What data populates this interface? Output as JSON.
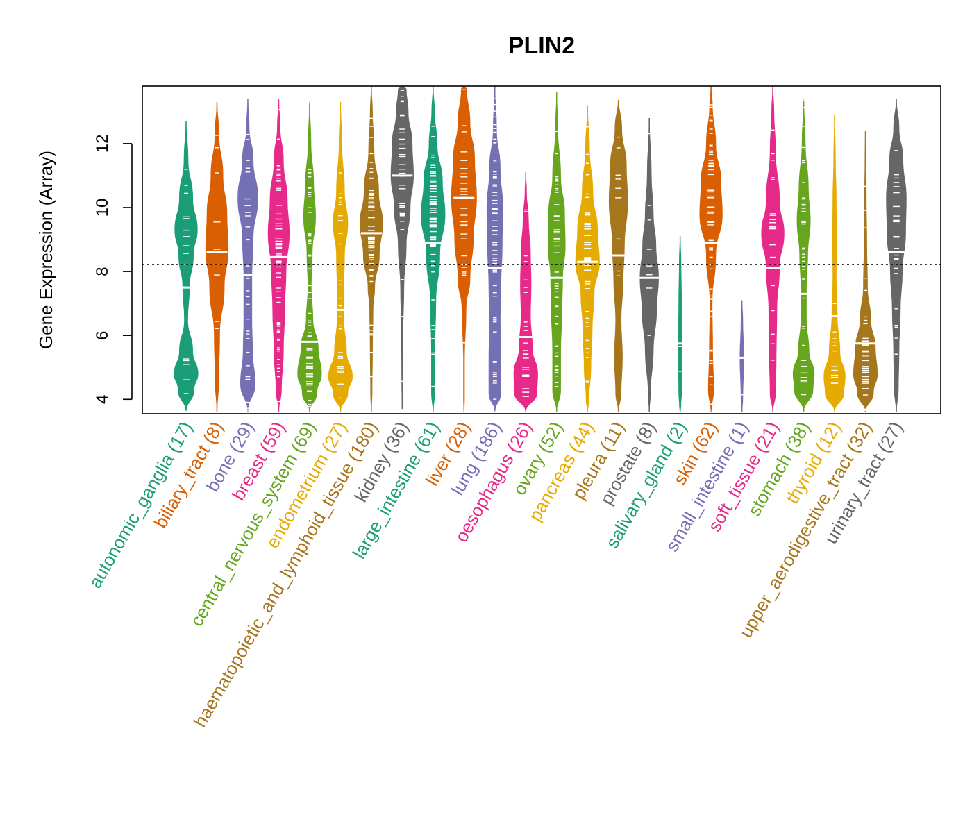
{
  "chart_data": {
    "type": "violin",
    "title": "PLIN2",
    "ylabel": "Gene Expression (Array)",
    "xlabel": "",
    "ylim": [
      3.55,
      13.8
    ],
    "yticks": [
      "4",
      "6",
      "8",
      "10",
      "12"
    ],
    "yticks_values": [
      4,
      6,
      8,
      10,
      12
    ],
    "reference_line": 8.22,
    "categories": [
      {
        "name": "autonomic_ganglia",
        "n": "17",
        "label": "autonomic_ganglia (17)",
        "color": "#1b9e77",
        "median": 7.5,
        "min": 3.6,
        "max": 12.7,
        "shape": [
          [
            4.3,
            0.6
          ],
          [
            4.8,
            0.9
          ],
          [
            5.5,
            0.5
          ],
          [
            6.5,
            0.12
          ],
          [
            7.5,
            0.25
          ],
          [
            8.5,
            0.55
          ],
          [
            9.3,
            0.85
          ],
          [
            10.3,
            0.5
          ],
          [
            11.5,
            0.15
          ]
        ]
      },
      {
        "name": "biliary_tract",
        "n": "8",
        "label": "biliary_tract (8)",
        "color": "#d95f02",
        "median": 8.6,
        "min": 3.6,
        "max": 13.3,
        "shape": [
          [
            4.5,
            0.12
          ],
          [
            6,
            0.2
          ],
          [
            7.5,
            0.55
          ],
          [
            8.7,
            0.85
          ],
          [
            9.8,
            0.75
          ],
          [
            11,
            0.45
          ],
          [
            12.3,
            0.15
          ]
        ]
      },
      {
        "name": "bone",
        "n": "29",
        "label": "bone (29)",
        "color": "#7570b3",
        "median": 7.9,
        "min": 3.6,
        "max": 13.4,
        "shape": [
          [
            4.5,
            0.55
          ],
          [
            5.5,
            0.35
          ],
          [
            6.5,
            0.3
          ],
          [
            7.8,
            0.3
          ],
          [
            9,
            0.4
          ],
          [
            10.3,
            0.75
          ],
          [
            11.5,
            0.4
          ],
          [
            12.5,
            0.1
          ]
        ]
      },
      {
        "name": "breast",
        "n": "59",
        "label": "breast (59)",
        "color": "#e7298a",
        "median": 8.45,
        "min": 3.6,
        "max": 13.4,
        "shape": [
          [
            4.3,
            0.2
          ],
          [
            5.5,
            0.35
          ],
          [
            6.8,
            0.45
          ],
          [
            8,
            0.55
          ],
          [
            9.2,
            0.8
          ],
          [
            10.2,
            0.65
          ],
          [
            11.5,
            0.35
          ],
          [
            12.5,
            0.1
          ]
        ]
      },
      {
        "name": "central_nervous_system",
        "n": "69",
        "label": "central_nervous_system (69)",
        "color": "#66a61e",
        "median": 5.8,
        "min": 3.6,
        "max": 13.3,
        "shape": [
          [
            4.2,
            0.55
          ],
          [
            4.8,
            0.9
          ],
          [
            5.6,
            0.65
          ],
          [
            6.5,
            0.25
          ],
          [
            7.5,
            0.12
          ],
          [
            8.6,
            0.2
          ],
          [
            9.7,
            0.45
          ],
          [
            10.8,
            0.3
          ],
          [
            12,
            0.1
          ]
        ]
      },
      {
        "name": "endometrium",
        "n": "27",
        "label": "endometrium (27)",
        "color": "#e6ab02",
        "median": 6.8,
        "min": 3.6,
        "max": 13.3,
        "shape": [
          [
            4.2,
            0.55
          ],
          [
            4.7,
            0.9
          ],
          [
            5.5,
            0.45
          ],
          [
            6.5,
            0.25
          ],
          [
            7.5,
            0.25
          ],
          [
            8.5,
            0.3
          ],
          [
            9.5,
            0.55
          ],
          [
            10.5,
            0.3
          ],
          [
            12,
            0.1
          ]
        ]
      },
      {
        "name": "haematopoietic_and_lymphoid_tissue",
        "n": "180",
        "label": "haematopoietic_and_lymphoid_tissue (180)",
        "color": "#a6761d",
        "median": 9.2,
        "min": 3.6,
        "max": 13.8,
        "shape": [
          [
            4.2,
            0.05
          ],
          [
            5.5,
            0.08
          ],
          [
            6.8,
            0.12
          ],
          [
            7.5,
            0.25
          ],
          [
            8.5,
            0.6
          ],
          [
            9.5,
            0.85
          ],
          [
            10.5,
            0.55
          ],
          [
            11.8,
            0.2
          ],
          [
            13,
            0.08
          ]
        ]
      },
      {
        "name": "kidney",
        "n": "36",
        "label": "kidney (36)",
        "color": "#666666",
        "median": 11.0,
        "min": 3.7,
        "max": 13.8,
        "shape": [
          [
            4.5,
            0.03
          ],
          [
            6,
            0.05
          ],
          [
            7.5,
            0.12
          ],
          [
            8.8,
            0.3
          ],
          [
            10,
            0.6
          ],
          [
            11,
            0.85
          ],
          [
            12,
            0.75
          ],
          [
            13,
            0.45
          ],
          [
            13.7,
            0.3
          ]
        ]
      },
      {
        "name": "large_intestine",
        "n": "61",
        "label": "large_intestine (61)",
        "color": "#1b9e77",
        "median": 8.9,
        "min": 3.6,
        "max": 13.8,
        "shape": [
          [
            4.2,
            0.12
          ],
          [
            5.5,
            0.12
          ],
          [
            7,
            0.2
          ],
          [
            8.5,
            0.5
          ],
          [
            9.8,
            0.9
          ],
          [
            10.8,
            0.7
          ],
          [
            12,
            0.3
          ],
          [
            13,
            0.1
          ]
        ]
      },
      {
        "name": "liver",
        "n": "28",
        "label": "liver (28)",
        "color": "#d95f02",
        "median": 10.3,
        "min": 3.6,
        "max": 13.8,
        "shape": [
          [
            4,
            0.03
          ],
          [
            5.2,
            0.03
          ],
          [
            6.8,
            0.15
          ],
          [
            7.8,
            0.45
          ],
          [
            9,
            0.7
          ],
          [
            10.3,
            0.95
          ],
          [
            11.5,
            0.8
          ],
          [
            12.7,
            0.45
          ],
          [
            13.7,
            0.2
          ]
        ]
      },
      {
        "name": "lung",
        "n": "186",
        "label": "lung (186)",
        "color": "#7570b3",
        "median": 8.1,
        "min": 3.6,
        "max": 13.8,
        "shape": [
          [
            4.2,
            0.45
          ],
          [
            5.2,
            0.45
          ],
          [
            6.5,
            0.4
          ],
          [
            7.5,
            0.45
          ],
          [
            8.8,
            0.55
          ],
          [
            10,
            0.6
          ],
          [
            11.2,
            0.4
          ],
          [
            12.5,
            0.12
          ]
        ]
      },
      {
        "name": "oesophagus",
        "n": "26",
        "label": "oesophagus (26)",
        "color": "#e7298a",
        "median": 5.95,
        "min": 3.6,
        "max": 11.1,
        "shape": [
          [
            4.2,
            0.85
          ],
          [
            4.8,
            0.9
          ],
          [
            5.6,
            0.5
          ],
          [
            6.6,
            0.35
          ],
          [
            7.6,
            0.4
          ],
          [
            8.6,
            0.35
          ],
          [
            9.6,
            0.2
          ],
          [
            10.5,
            0.05
          ]
        ]
      },
      {
        "name": "ovary",
        "n": "52",
        "label": "ovary (52)",
        "color": "#66a61e",
        "median": 7.8,
        "min": 3.6,
        "max": 13.6,
        "shape": [
          [
            4.3,
            0.3
          ],
          [
            5.5,
            0.3
          ],
          [
            6.8,
            0.4
          ],
          [
            7.8,
            0.45
          ],
          [
            8.8,
            0.65
          ],
          [
            9.8,
            0.6
          ],
          [
            11,
            0.3
          ],
          [
            12.5,
            0.08
          ]
        ]
      },
      {
        "name": "pancreas",
        "n": "44",
        "label": "pancreas (44)",
        "color": "#e6ab02",
        "median": 8.3,
        "min": 3.6,
        "max": 13.2,
        "shape": [
          [
            4,
            0.1
          ],
          [
            5,
            0.25
          ],
          [
            6.2,
            0.35
          ],
          [
            7.3,
            0.5
          ],
          [
            8.3,
            0.9
          ],
          [
            9.3,
            0.75
          ],
          [
            10.5,
            0.4
          ],
          [
            11.8,
            0.15
          ]
        ]
      },
      {
        "name": "pleura",
        "n": "11",
        "label": "pleura (11)",
        "color": "#a6761d",
        "median": 8.5,
        "min": 3.6,
        "max": 13.4,
        "shape": [
          [
            4.2,
            0.2
          ],
          [
            5.3,
            0.3
          ],
          [
            6.5,
            0.2
          ],
          [
            7.7,
            0.35
          ],
          [
            8.8,
            0.45
          ],
          [
            10.2,
            0.7
          ],
          [
            11.3,
            0.6
          ],
          [
            12.5,
            0.25
          ]
        ]
      },
      {
        "name": "prostate",
        "n": "8",
        "label": "prostate (8)",
        "color": "#666666",
        "median": 7.8,
        "min": 3.6,
        "max": 12.8,
        "shape": [
          [
            4.2,
            0.08
          ],
          [
            5.5,
            0.3
          ],
          [
            6.8,
            0.55
          ],
          [
            7.8,
            0.7
          ],
          [
            8.8,
            0.5
          ],
          [
            9.8,
            0.3
          ],
          [
            11,
            0.15
          ]
        ]
      },
      {
        "name": "salivary_gland",
        "n": "2",
        "label": "salivary_gland (2)",
        "color": "#1b9e77",
        "median": 5.75,
        "min": 3.6,
        "max": 9.1,
        "shape": [
          [
            3.8,
            0.05
          ],
          [
            4.2,
            0.1
          ],
          [
            5.5,
            0.15
          ],
          [
            7,
            0.1
          ],
          [
            8.3,
            0.06
          ]
        ]
      },
      {
        "name": "skin",
        "n": "62",
        "label": "skin (62)",
        "color": "#d95f02",
        "median": 8.9,
        "min": 3.6,
        "max": 13.8,
        "shape": [
          [
            4.3,
            0.2
          ],
          [
            5.5,
            0.12
          ],
          [
            7,
            0.08
          ],
          [
            8.5,
            0.35
          ],
          [
            9.8,
            0.85
          ],
          [
            10.8,
            0.75
          ],
          [
            12,
            0.35
          ],
          [
            13.2,
            0.1
          ]
        ]
      },
      {
        "name": "small_intestine",
        "n": "1",
        "label": "small_intestine (1)",
        "color": "#7570b3",
        "median": 5.3,
        "min": 3.6,
        "max": 7.1,
        "shape": [
          [
            4,
            0.06
          ],
          [
            5.3,
            0.14
          ],
          [
            6.5,
            0.06
          ]
        ]
      },
      {
        "name": "soft_tissue",
        "n": "21",
        "label": "soft_tissue (21)",
        "color": "#e7298a",
        "median": 8.1,
        "min": 3.6,
        "max": 13.8,
        "shape": [
          [
            4.2,
            0.2
          ],
          [
            5.3,
            0.25
          ],
          [
            6.8,
            0.3
          ],
          [
            8.1,
            0.5
          ],
          [
            9.2,
            0.85
          ],
          [
            10.2,
            0.5
          ],
          [
            11.8,
            0.2
          ],
          [
            13,
            0.08
          ]
        ]
      },
      {
        "name": "stomach",
        "n": "38",
        "label": "stomach (38)",
        "color": "#66a61e",
        "median": 7.3,
        "min": 3.6,
        "max": 13.4,
        "shape": [
          [
            4.3,
            0.7
          ],
          [
            4.8,
            0.8
          ],
          [
            5.5,
            0.4
          ],
          [
            6.5,
            0.2
          ],
          [
            7.5,
            0.2
          ],
          [
            8.5,
            0.3
          ],
          [
            9.6,
            0.5
          ],
          [
            10.6,
            0.35
          ],
          [
            12,
            0.12
          ]
        ]
      },
      {
        "name": "thyroid",
        "n": "12",
        "label": "thyroid (12)",
        "color": "#e6ab02",
        "median": 6.6,
        "min": 3.6,
        "max": 12.9,
        "shape": [
          [
            4.2,
            0.7
          ],
          [
            4.7,
            0.8
          ],
          [
            5.5,
            0.4
          ],
          [
            6.6,
            0.2
          ],
          [
            7.8,
            0.12
          ],
          [
            9,
            0.15
          ],
          [
            10.3,
            0.12
          ],
          [
            11.5,
            0.06
          ]
        ]
      },
      {
        "name": "upper_aerodigestive_tract",
        "n": "32",
        "label": "upper_aerodigestive_tract (32)",
        "color": "#a6761d",
        "median": 5.75,
        "min": 3.6,
        "max": 12.4,
        "shape": [
          [
            4.2,
            0.6
          ],
          [
            4.8,
            0.9
          ],
          [
            5.6,
            0.75
          ],
          [
            6.5,
            0.4
          ],
          [
            7.5,
            0.15
          ],
          [
            8.8,
            0.1
          ],
          [
            10.3,
            0.06
          ],
          [
            11.5,
            0.03
          ]
        ]
      },
      {
        "name": "urinary_tract",
        "n": "27",
        "label": "urinary_tract (27)",
        "color": "#666666",
        "median": 8.6,
        "min": 3.6,
        "max": 13.4,
        "shape": [
          [
            4.3,
            0.15
          ],
          [
            5.5,
            0.2
          ],
          [
            6.8,
            0.3
          ],
          [
            8,
            0.45
          ],
          [
            9.2,
            0.7
          ],
          [
            10.3,
            0.75
          ],
          [
            11.5,
            0.5
          ],
          [
            12.5,
            0.2
          ]
        ]
      }
    ]
  }
}
